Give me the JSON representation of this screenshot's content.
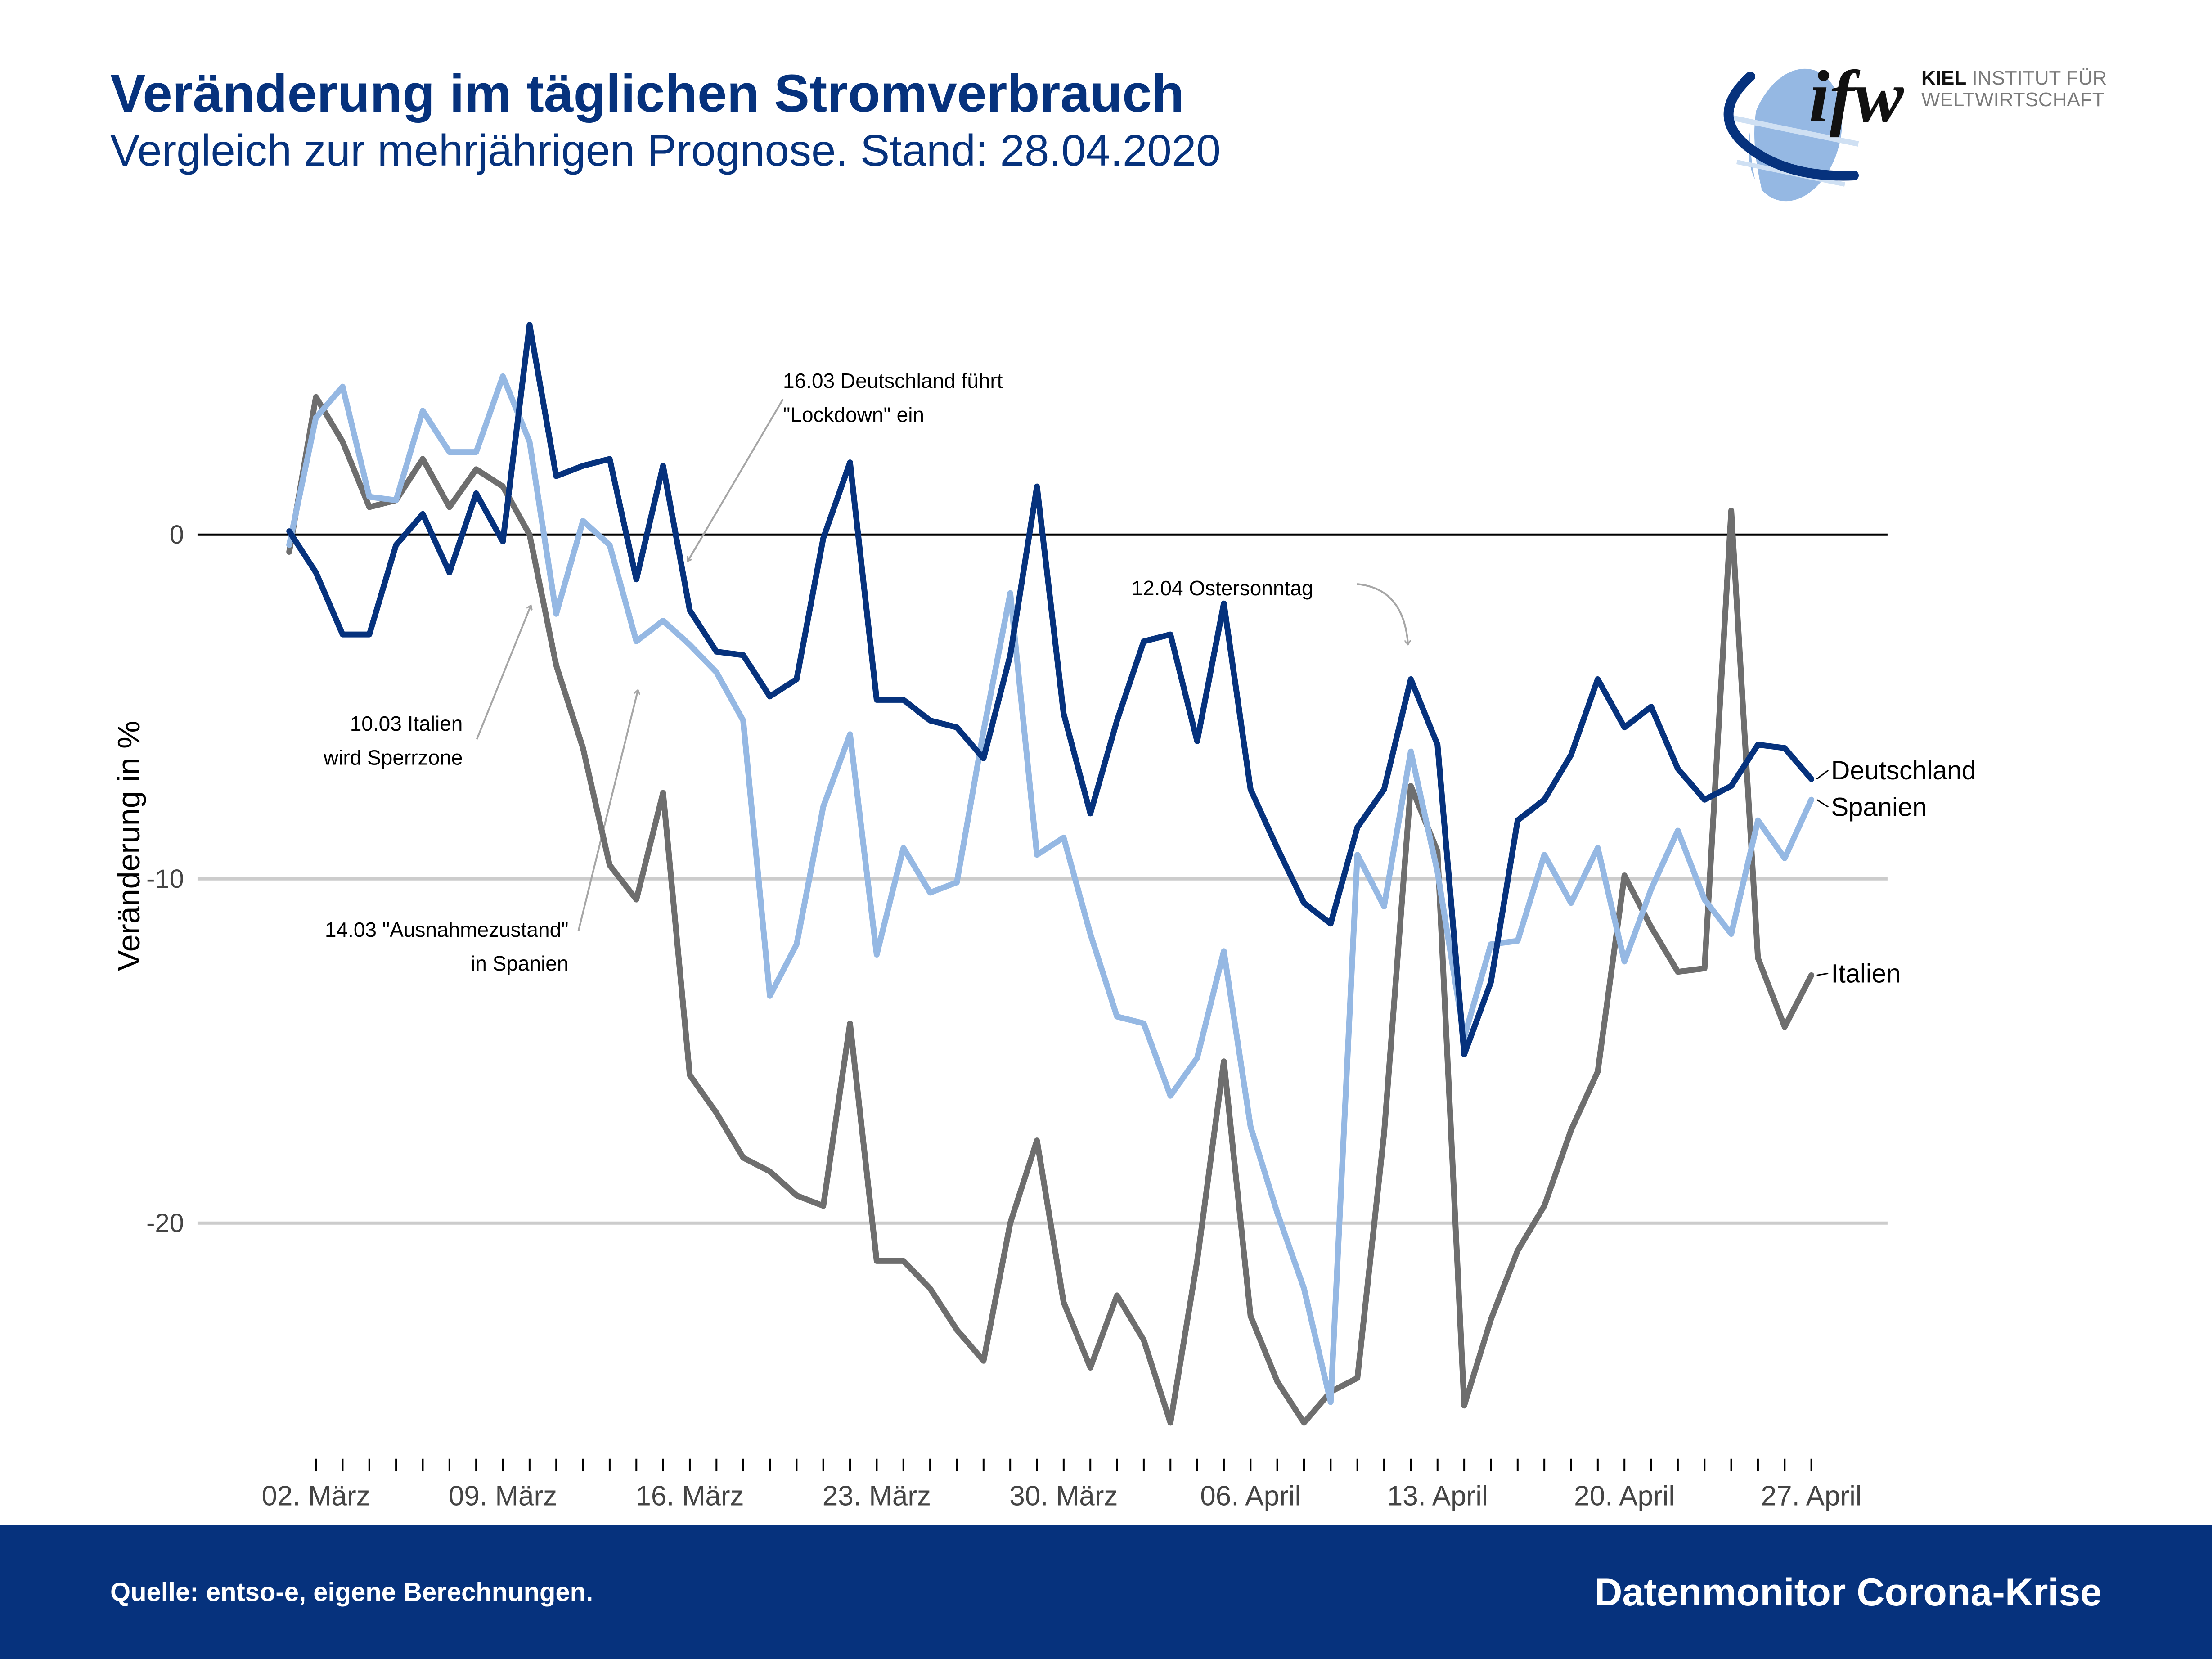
{
  "header": {
    "title": "Veränderung im täglichen Stromverbrauch",
    "subtitle": "Vergleich zur mehrjährigen Prognose. Stand: 28.04.2020"
  },
  "logo": {
    "mark": "ifw",
    "line1_bold": "KIEL",
    "line1_rest": " INSTITUT FÜR",
    "line2": "WELTWIRTSCHAFT"
  },
  "footer": {
    "source": "Quelle: entso-e, eigene Berechnungen.",
    "brand": "Datenmonitor Corona-Krise"
  },
  "colors": {
    "brand_blue": "#06327d",
    "deutschland": "#06327d",
    "spanien": "#95b8e3",
    "italien": "#6e6e6e",
    "grid": "#cccccc",
    "zero_line": "#000000",
    "annotation_arrow": "#a6a6a6"
  },
  "chart_data": {
    "type": "line",
    "title": "Veränderung im täglichen Stromverbrauch",
    "subtitle": "Vergleich zur mehrjährigen Prognose. Stand: 28.04.2020",
    "xlabel": "",
    "ylabel": "Veränderung in %",
    "ylim": [
      -26.5,
      6.5
    ],
    "yticks": [
      0,
      -10,
      -20
    ],
    "ytick_labels": [
      "0",
      "-10",
      "-20"
    ],
    "grid": "horizontal",
    "x_start": "01.03.2020",
    "x_end": "28.04.2020",
    "xticks_labeled": [
      {
        "day": 1,
        "label": "02. März"
      },
      {
        "day": 8,
        "label": "09. März"
      },
      {
        "day": 15,
        "label": "16. März"
      },
      {
        "day": 22,
        "label": "23. März"
      },
      {
        "day": 29,
        "label": "30. März"
      },
      {
        "day": 36,
        "label": "06. April"
      },
      {
        "day": 43,
        "label": "13. April"
      },
      {
        "day": 50,
        "label": "20. April"
      },
      {
        "day": 57,
        "label": "27. April"
      }
    ],
    "legend": "direct-labels-right",
    "series": [
      {
        "name": "Deutschland",
        "values": [
          0.1,
          -1.1,
          -2.9,
          -2.9,
          -0.3,
          0.6,
          -1.1,
          1.2,
          -0.2,
          6.1,
          1.7,
          2.0,
          2.2,
          -1.3,
          2.0,
          -2.2,
          -3.4,
          -3.5,
          -4.7,
          -4.2,
          -0.1,
          2.1,
          -4.8,
          -4.8,
          -5.4,
          -5.6,
          -6.5,
          -3.5,
          1.4,
          -5.2,
          -8.1,
          -5.4,
          -3.1,
          -2.9,
          -6.0,
          -2.0,
          -7.4,
          -9.1,
          -10.7,
          -11.3,
          -8.5,
          -7.4,
          -4.2,
          -6.1,
          -15.1,
          -13.0,
          -8.3,
          -7.7,
          -6.4,
          -4.2,
          -5.6,
          -5.0,
          -6.8,
          -7.7,
          -7.3,
          -6.1,
          -6.2,
          -7.1
        ]
      },
      {
        "name": "Spanien",
        "values": [
          -0.3,
          3.4,
          4.3,
          1.1,
          1.0,
          3.6,
          2.4,
          2.4,
          4.6,
          2.7,
          -2.3,
          0.4,
          -0.3,
          -3.1,
          -2.5,
          -3.2,
          -4.0,
          -5.4,
          -13.4,
          -11.9,
          -7.9,
          -5.8,
          -12.2,
          -9.1,
          -10.4,
          -10.1,
          -5.7,
          -1.7,
          -9.3,
          -8.8,
          -11.6,
          -14.0,
          -14.2,
          -16.3,
          -15.2,
          -12.1,
          -17.2,
          -19.7,
          -21.9,
          -25.2,
          -9.3,
          -10.8,
          -6.3,
          -9.8,
          -14.6,
          -11.9,
          -11.8,
          -9.3,
          -10.7,
          -9.1,
          -12.4,
          -10.3,
          -8.6,
          -10.6,
          -11.6,
          -8.3,
          -9.4,
          -7.7
        ]
      },
      {
        "name": "Italien",
        "values": [
          -0.5,
          4.0,
          2.7,
          0.8,
          1.0,
          2.2,
          0.8,
          1.9,
          1.4,
          0.0,
          -3.8,
          -6.2,
          -9.6,
          -10.6,
          -7.5,
          -15.7,
          -16.8,
          -18.1,
          -18.5,
          -19.2,
          -19.5,
          -14.2,
          -21.1,
          -21.1,
          -21.9,
          -23.1,
          -24.0,
          -20.0,
          -17.6,
          -22.3,
          -24.2,
          -22.1,
          -23.4,
          -25.8,
          -21.1,
          -15.3,
          -22.7,
          -24.6,
          -25.8,
          -24.9,
          -24.5,
          -17.4,
          -7.3,
          -9.2,
          -25.3,
          -22.8,
          -20.8,
          -19.5,
          -17.3,
          -15.6,
          -9.9,
          -11.4,
          -12.7,
          -12.6,
          0.7,
          -12.3,
          -14.3,
          -12.8
        ]
      }
    ],
    "annotations": [
      {
        "text_lines": [
          "16.03 Deutschland führt",
          "\"Lockdown\" ein"
        ],
        "points_to": {
          "series": "Deutschland",
          "date": "16.03"
        }
      },
      {
        "text_lines": [
          "10.03 Italien",
          "wird Sperrzone"
        ],
        "points_to": {
          "series": "Italien",
          "date": "10.03"
        }
      },
      {
        "text_lines": [
          "14.03 \"Ausnahmezustand\"",
          "in Spanien"
        ],
        "points_to": {
          "series": "Spanien",
          "date": "14.03"
        }
      },
      {
        "text_lines": [
          "12.04 Ostersonntag"
        ],
        "points_to": {
          "series": "Deutschland",
          "date": "12.04"
        }
      }
    ]
  }
}
